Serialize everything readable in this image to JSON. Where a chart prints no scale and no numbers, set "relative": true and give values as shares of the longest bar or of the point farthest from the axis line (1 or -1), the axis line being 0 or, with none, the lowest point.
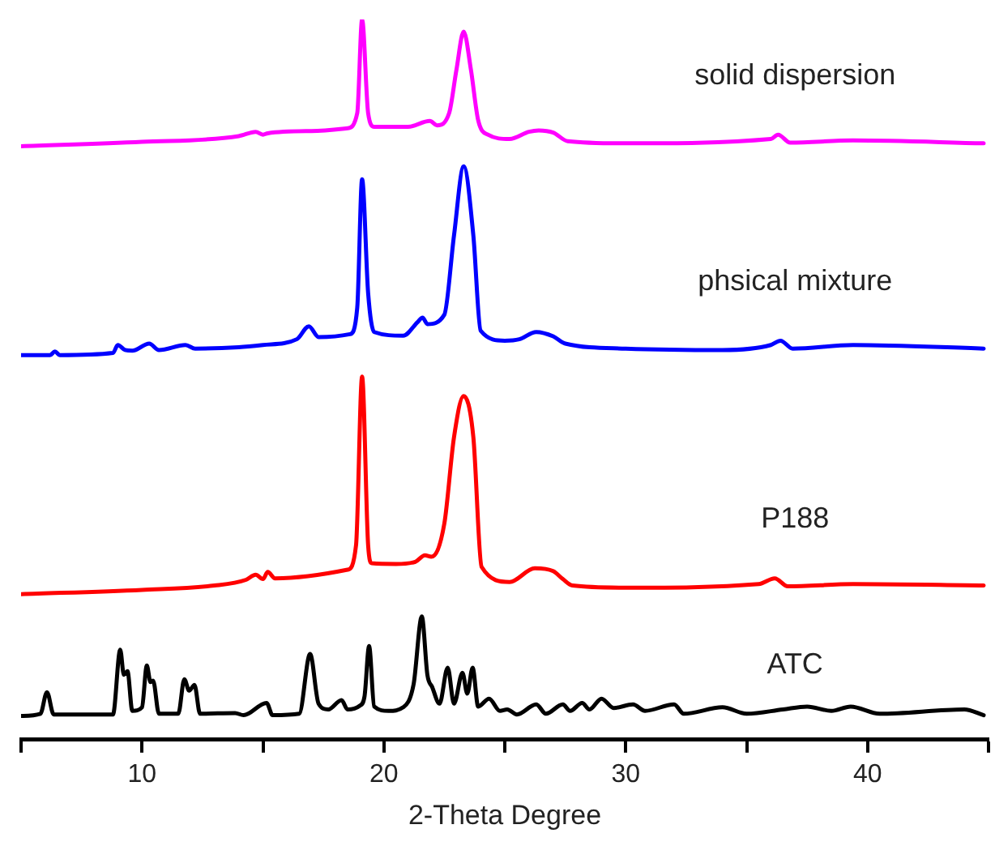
{
  "chart_data": {
    "type": "line",
    "relative": true,
    "xlabel": "2-Theta Degree",
    "xlim": [
      5,
      45
    ],
    "xticks": [
      {
        "value": 5,
        "label": null
      },
      10,
      {
        "value": 15,
        "label": null
      },
      20,
      {
        "value": 25,
        "label": null
      },
      30,
      {
        "value": 35,
        "label": null
      },
      40,
      {
        "value": 45,
        "label": null
      }
    ],
    "grid": false,
    "legend": false,
    "marker": "none",
    "line_style": "solid",
    "series": [
      {
        "name": "solid dispersion",
        "color": "#ff00ff",
        "x": [
          5,
          10,
          14,
          14.7,
          15.0,
          15.2,
          17,
          18.5,
          18.9,
          19.1,
          19.35,
          19.6,
          21,
          21.9,
          22.2,
          22.7,
          23.0,
          23.3,
          23.6,
          23.9,
          24.3,
          25.2,
          26.0,
          26.4,
          27.0,
          27.6,
          30,
          36.0,
          36.3,
          36.8,
          39.4,
          44.8
        ],
        "values": [
          0.824,
          0.83,
          0.838,
          0.844,
          0.84,
          0.842,
          0.845,
          0.849,
          0.87,
          1,
          0.87,
          0.851,
          0.851,
          0.859,
          0.853,
          0.87,
          0.93,
          0.983,
          0.93,
          0.86,
          0.84,
          0.834,
          0.844,
          0.846,
          0.843,
          0.831,
          0.828,
          0.834,
          0.84,
          0.829,
          0.832,
          0.828
        ]
      },
      {
        "name": "phsical mixture",
        "color": "#0000ff",
        "x": [
          5,
          6.2,
          6.4,
          6.6,
          8.8,
          9.0,
          9.3,
          9.6,
          10.3,
          10.7,
          11.8,
          12.2,
          14.0,
          15.0,
          16.4,
          16.9,
          17.3,
          18.6,
          18.9,
          19.1,
          19.35,
          19.6,
          20.8,
          21.4,
          21.6,
          21.8,
          22.5,
          22.9,
          23.3,
          23.7,
          24.0,
          25.0,
          25.6,
          26.3,
          27.0,
          27.5,
          30,
          34,
          36.0,
          36.4,
          36.9,
          39.4,
          44.8
        ],
        "values": [
          0.534,
          0.534,
          0.539,
          0.534,
          0.537,
          0.548,
          0.541,
          0.54,
          0.55,
          0.541,
          0.548,
          0.543,
          0.545,
          0.548,
          0.556,
          0.574,
          0.559,
          0.563,
          0.6,
          0.778,
          0.62,
          0.566,
          0.561,
          0.58,
          0.586,
          0.577,
          0.59,
          0.7,
          0.796,
          0.7,
          0.568,
          0.554,
          0.556,
          0.566,
          0.56,
          0.55,
          0.543,
          0.541,
          0.548,
          0.554,
          0.543,
          0.548,
          0.543
        ]
      },
      {
        "name": "P188",
        "color": "#ff0000",
        "x": [
          5,
          10,
          13,
          14.3,
          14.7,
          15.0,
          15.2,
          15.5,
          18.5,
          18.85,
          19.1,
          19.35,
          19.5,
          20.5,
          21.3,
          21.7,
          21.96,
          22.5,
          22.9,
          23.3,
          23.7,
          24.04,
          25.2,
          26.24,
          27.0,
          27.4,
          27.8,
          30,
          35.5,
          36.16,
          36.7,
          39.4,
          44.8
        ],
        "values": [
          0.202,
          0.208,
          0.214,
          0.222,
          0.229,
          0.223,
          0.233,
          0.224,
          0.236,
          0.27,
          0.504,
          0.27,
          0.245,
          0.244,
          0.247,
          0.256,
          0.254,
          0.3,
          0.42,
          0.477,
          0.42,
          0.24,
          0.219,
          0.238,
          0.234,
          0.223,
          0.214,
          0.211,
          0.216,
          0.224,
          0.213,
          0.216,
          0.214
        ]
      },
      {
        "name": "ATC",
        "color": "#000000",
        "x": [
          5,
          5.8,
          6.07,
          6.35,
          8.8,
          9.1,
          9.25,
          9.4,
          9.6,
          10.0,
          10.2,
          10.35,
          10.46,
          10.7,
          11.5,
          11.75,
          11.95,
          12.17,
          12.4,
          13.85,
          14.2,
          15.15,
          15.4,
          16.5,
          16.95,
          17.3,
          17.7,
          18.25,
          18.5,
          19.0,
          19.2,
          19.39,
          19.6,
          20.2,
          20.8,
          21.23,
          21.57,
          21.8,
          22.0,
          22.3,
          22.64,
          22.9,
          23.25,
          23.45,
          23.67,
          23.9,
          24.35,
          24.8,
          25.1,
          25.5,
          26.3,
          26.7,
          27.4,
          27.7,
          28.2,
          28.5,
          29.0,
          29.5,
          30.3,
          30.8,
          32.0,
          32.4,
          34.0,
          35.0,
          36.5,
          37.5,
          38.5,
          39.3,
          40.5,
          44,
          44.8
        ],
        "values": [
          0.033,
          0.036,
          0.066,
          0.035,
          0.035,
          0.125,
          0.09,
          0.095,
          0.04,
          0.045,
          0.103,
          0.08,
          0.082,
          0.036,
          0.036,
          0.084,
          0.068,
          0.076,
          0.036,
          0.037,
          0.034,
          0.051,
          0.034,
          0.036,
          0.119,
          0.05,
          0.042,
          0.055,
          0.042,
          0.047,
          0.06,
          0.13,
          0.046,
          0.04,
          0.045,
          0.077,
          0.171,
          0.09,
          0.073,
          0.05,
          0.1,
          0.05,
          0.093,
          0.064,
          0.1,
          0.046,
          0.057,
          0.04,
          0.042,
          0.035,
          0.049,
          0.036,
          0.049,
          0.04,
          0.051,
          0.042,
          0.057,
          0.044,
          0.049,
          0.04,
          0.049,
          0.036,
          0.045,
          0.036,
          0.042,
          0.046,
          0.04,
          0.046,
          0.036,
          0.042,
          0.034
        ]
      }
    ]
  }
}
